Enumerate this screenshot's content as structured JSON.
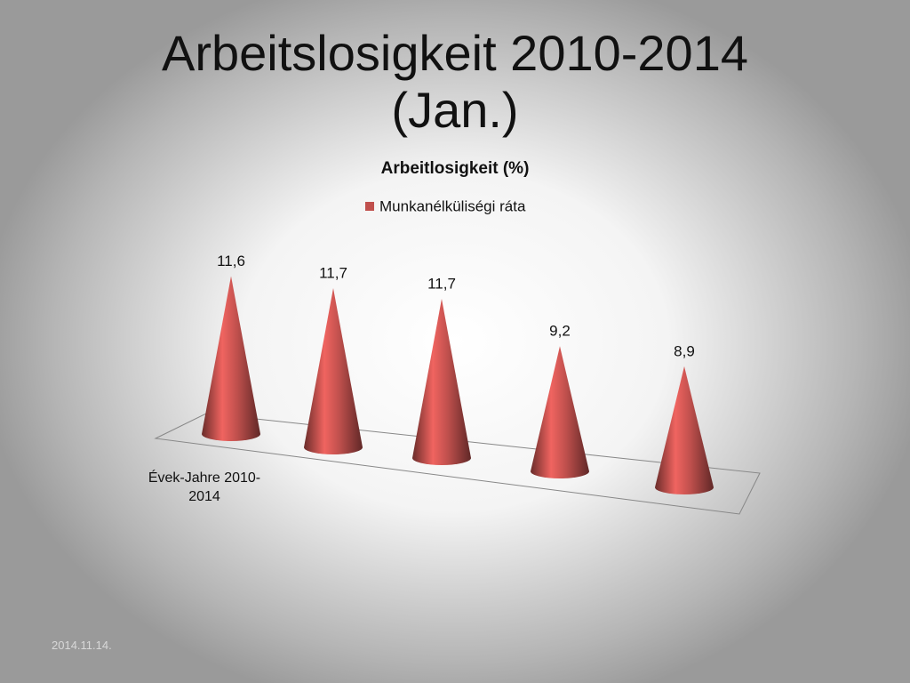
{
  "slide_title": "Arbeitslosigkeit 2010-2014 (Jan.)",
  "date": "2014.11.14.",
  "chart_data": {
    "type": "cone",
    "title": "Arbeitlosigkeit (%)",
    "categories": [
      "Évek-Jahre 2010-2014",
      null,
      null,
      null,
      null
    ],
    "series": [
      {
        "name": "Munkanélküliségi ráta",
        "color": "#c0504d",
        "values": [
          11.6,
          11.7,
          11.7,
          9.2,
          8.9
        ],
        "value_labels": [
          "11,6",
          "11,7",
          "11,7",
          "9,2",
          "8,9"
        ]
      }
    ]
  }
}
